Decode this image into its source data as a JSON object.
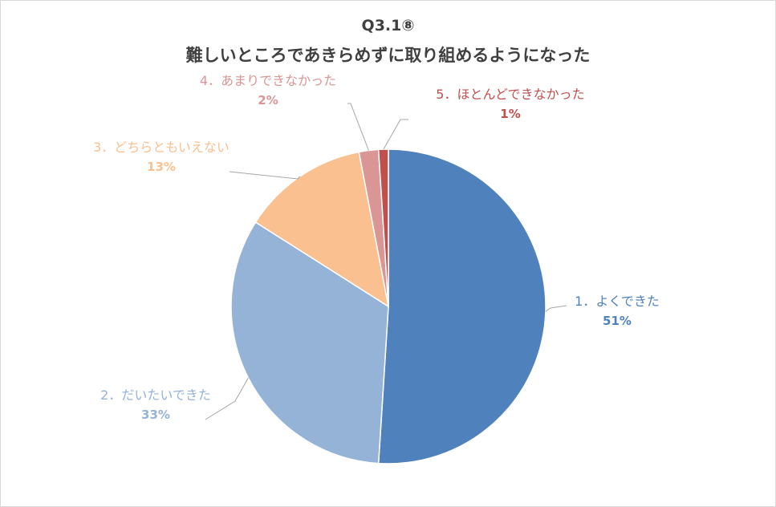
{
  "chart_data": {
    "type": "pie",
    "title": "Q3.1⑧",
    "subtitle": "難しいところであきらめずに取り組めるようになった",
    "categories": [
      "1．よくできた",
      "2．だいたいできた",
      "3．どちらともいえない",
      "4．あまりできなかった",
      "5．ほとんどできなかった"
    ],
    "values": [
      51,
      33,
      13,
      2,
      1
    ],
    "value_labels": [
      "51%",
      "33%",
      "13%",
      "2%",
      "1%"
    ],
    "colors": [
      "#4F81BD",
      "#95B3D7",
      "#FAC090",
      "#D99694",
      "#C0504D"
    ],
    "legend": "none"
  }
}
